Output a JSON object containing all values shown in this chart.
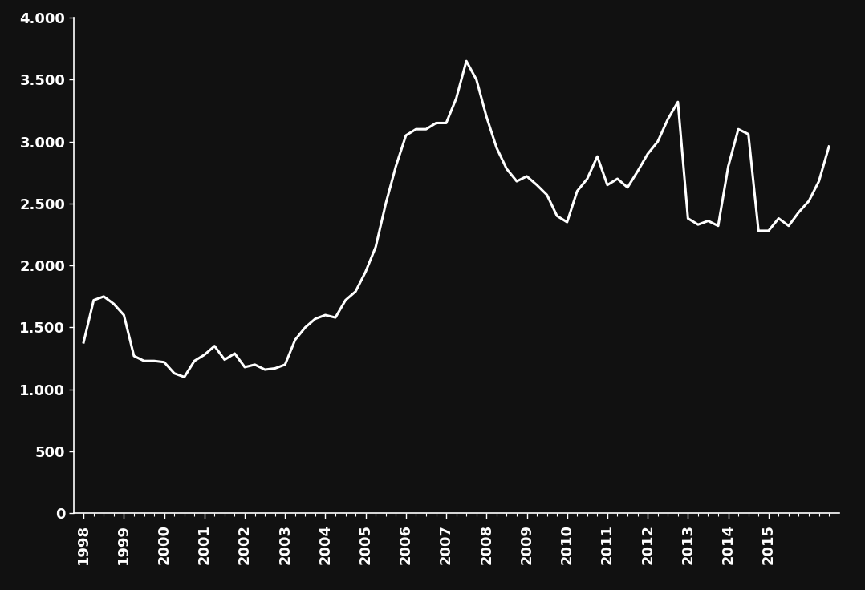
{
  "background_color": "#111111",
  "line_color": "#ffffff",
  "line_width": 2.2,
  "text_color": "#ffffff",
  "axis_color": "#ffffff",
  "ylim": [
    0,
    4000
  ],
  "yticks": [
    0,
    500,
    1000,
    1500,
    2000,
    2500,
    3000,
    3500,
    4000
  ],
  "ytick_labels": [
    "0",
    "500",
    "1.000",
    "1.500",
    "2.000",
    "2.500",
    "3.000",
    "3.500",
    "4.000"
  ],
  "xtick_labels": [
    "1998",
    "1999",
    "2000",
    "2001",
    "2002",
    "2003",
    "2004",
    "2005",
    "2006",
    "2007",
    "2008",
    "2009",
    "2010",
    "2011",
    "2012",
    "2013",
    "2014",
    "2015"
  ],
  "values": [
    1380,
    1720,
    1750,
    1690,
    1600,
    1270,
    1230,
    1230,
    1220,
    1130,
    1100,
    1230,
    1280,
    1350,
    1240,
    1290,
    1180,
    1200,
    1160,
    1170,
    1200,
    1400,
    1500,
    1570,
    1600,
    1580,
    1720,
    1790,
    1950,
    2150,
    2500,
    2800,
    3050,
    3100,
    3100,
    3150,
    3150,
    3350,
    3650,
    3500,
    3200,
    2950,
    2780,
    2680,
    2720,
    2650,
    2570,
    2400,
    2350,
    2600,
    2700,
    2880,
    2650,
    2700,
    2630,
    2760,
    2900,
    3000,
    3180,
    3320,
    2380,
    2330,
    2360,
    2320,
    2800,
    3100,
    3060,
    2280,
    2280,
    2380,
    2320,
    2430,
    2520,
    2680,
    2960
  ]
}
